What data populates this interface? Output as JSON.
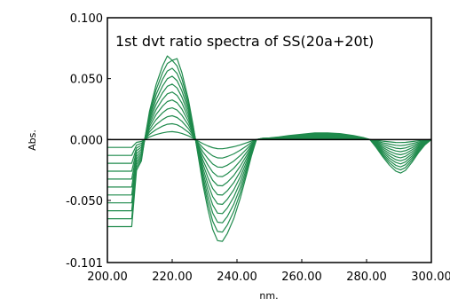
{
  "chart_data": {
    "type": "line",
    "title": "1st dvt ratio spectra of SS(20a+20t)",
    "xlabel": "nm.",
    "ylabel": "Abs.",
    "xlim": [
      200,
      300
    ],
    "ylim": [
      -0.101,
      0.1
    ],
    "x_ticks": [
      "200.00",
      "220.00",
      "240.00",
      "260.00",
      "280.00",
      "300.00"
    ],
    "y_ticks": [
      {
        "value": 0.1,
        "label": "0.100"
      },
      {
        "value": 0.05,
        "label": "0.050"
      },
      {
        "value": 0.0,
        "label": "0.000"
      },
      {
        "value": -0.05,
        "label": "-0.050"
      },
      {
        "value": -0.101,
        "label": "-0.101"
      }
    ],
    "grid": false,
    "legend": "none",
    "series_color": "#1f8a4c",
    "zero_line_color": "#000000",
    "x": [
      200,
      204,
      207.5,
      209,
      210.5,
      211.5,
      213,
      215,
      217,
      218.5,
      220,
      221.5,
      223,
      225,
      226.5,
      228,
      229.5,
      231,
      232.5,
      234,
      235.5,
      237,
      239,
      241,
      243,
      244.5,
      246,
      248,
      250,
      253,
      256,
      260,
      264,
      268,
      272,
      276,
      279,
      281,
      283,
      285,
      287,
      289,
      290.5,
      292,
      294,
      296,
      298,
      300
    ],
    "series": [
      {
        "values": [
          -0.0065,
          -0.0065,
          -0.0065,
          -0.0023,
          -0.0016,
          0.0,
          0.0021,
          0.0041,
          0.0055,
          0.0062,
          0.0065,
          0.006,
          0.005,
          0.003,
          0.001,
          -0.0012,
          -0.0034,
          -0.0052,
          -0.0067,
          -0.0075,
          -0.0076,
          -0.007,
          -0.0059,
          -0.0044,
          -0.0026,
          -0.0012,
          0.0,
          0.0001,
          0.0001,
          0.0002,
          0.0003,
          0.0004,
          0.0005,
          0.0005,
          0.0004,
          0.0003,
          0.0001,
          0.0,
          -0.0006,
          -0.0013,
          -0.0019,
          -0.0024,
          -0.0025,
          -0.0023,
          -0.0017,
          -0.001,
          -0.0004,
          0.0
        ]
      },
      {
        "values": [
          -0.013,
          -0.013,
          -0.013,
          -0.0046,
          -0.0032,
          0.0,
          0.0042,
          0.0082,
          0.011,
          0.0125,
          0.013,
          0.0121,
          0.01,
          0.006,
          0.002,
          -0.0024,
          -0.0068,
          -0.0104,
          -0.0134,
          -0.0151,
          -0.0152,
          -0.014,
          -0.0118,
          -0.0088,
          -0.0052,
          -0.0024,
          0.0,
          0.0002,
          0.0003,
          0.0004,
          0.0006,
          0.0008,
          0.001,
          0.001,
          0.0009,
          0.0006,
          0.0003,
          0.0,
          -0.0012,
          -0.0026,
          -0.0038,
          -0.0047,
          -0.005,
          -0.0046,
          -0.0034,
          -0.002,
          -0.0008,
          0.0
        ]
      },
      {
        "values": [
          -0.0195,
          -0.0195,
          -0.0195,
          -0.0069,
          -0.0048,
          0.0,
          0.0063,
          0.0122,
          0.0164,
          0.0187,
          0.0195,
          0.0181,
          0.015,
          0.0089,
          0.0031,
          -0.0036,
          -0.0102,
          -0.0156,
          -0.0201,
          -0.0226,
          -0.0228,
          -0.0211,
          -0.0177,
          -0.0132,
          -0.0078,
          -0.0036,
          0.0,
          0.0003,
          0.0004,
          0.0006,
          0.0009,
          0.0012,
          0.0015,
          0.0015,
          0.0013,
          0.0009,
          0.0004,
          0.0,
          -0.0018,
          -0.0039,
          -0.0057,
          -0.0071,
          -0.0075,
          -0.0069,
          -0.0051,
          -0.003,
          -0.0012,
          0.0
        ]
      },
      {
        "values": [
          -0.026,
          -0.026,
          -0.026,
          -0.0092,
          -0.0064,
          0.0,
          0.0084,
          0.0163,
          0.0219,
          0.025,
          0.026,
          0.0242,
          0.02,
          0.0119,
          0.0041,
          -0.0048,
          -0.0136,
          -0.0208,
          -0.0268,
          -0.0302,
          -0.0304,
          -0.0281,
          -0.0236,
          -0.0176,
          -0.0104,
          -0.0048,
          0.0,
          0.0004,
          0.0005,
          0.0008,
          0.0012,
          0.0016,
          0.002,
          0.002,
          0.0018,
          0.0012,
          0.0006,
          0.0,
          -0.0024,
          -0.0052,
          -0.0076,
          -0.0094,
          -0.01,
          -0.0092,
          -0.0068,
          -0.004,
          -0.0016,
          0.0
        ]
      },
      {
        "values": [
          -0.0325,
          -0.0325,
          -0.0325,
          -0.0115,
          -0.008,
          0.0,
          0.0105,
          0.0204,
          0.0274,
          0.0312,
          0.0325,
          0.0302,
          0.025,
          0.0149,
          0.0051,
          -0.006,
          -0.017,
          -0.026,
          -0.0335,
          -0.0377,
          -0.038,
          -0.0351,
          -0.0295,
          -0.022,
          -0.013,
          -0.006,
          0.0,
          0.0005,
          0.0006,
          0.001,
          0.0015,
          0.002,
          0.0025,
          0.0025,
          0.0022,
          0.0015,
          0.0007,
          0.0,
          -0.003,
          -0.0065,
          -0.0095,
          -0.0118,
          -0.0125,
          -0.0115,
          -0.0085,
          -0.005,
          -0.002,
          0.0
        ]
      },
      {
        "values": [
          -0.039,
          -0.039,
          -0.039,
          -0.0138,
          -0.0096,
          0.0,
          0.0126,
          0.0245,
          0.0329,
          0.0375,
          0.039,
          0.0362,
          0.03,
          0.0178,
          0.0061,
          -0.0072,
          -0.0204,
          -0.0312,
          -0.0402,
          -0.0453,
          -0.0456,
          -0.0421,
          -0.0354,
          -0.0264,
          -0.0156,
          -0.0072,
          0.0,
          0.0006,
          0.0008,
          0.0012,
          0.0018,
          0.0024,
          0.003,
          0.003,
          0.0027,
          0.0018,
          0.0009,
          0.0,
          -0.0036,
          -0.0078,
          -0.0114,
          -0.0141,
          -0.015,
          -0.0138,
          -0.0102,
          -0.006,
          -0.0024,
          0.0
        ]
      },
      {
        "values": [
          -0.0455,
          -0.0455,
          -0.0455,
          -0.0161,
          -0.0112,
          0.0,
          0.0147,
          0.0286,
          0.0384,
          0.0437,
          0.0455,
          0.0423,
          0.035,
          0.0208,
          0.0071,
          -0.0084,
          -0.0238,
          -0.0364,
          -0.0469,
          -0.0528,
          -0.0532,
          -0.0491,
          -0.0413,
          -0.0308,
          -0.0182,
          -0.0084,
          0.0,
          0.0007,
          0.0009,
          0.0014,
          0.0021,
          0.0028,
          0.0035,
          0.0035,
          0.0031,
          0.0021,
          0.001,
          0.0,
          -0.0042,
          -0.0091,
          -0.0133,
          -0.0165,
          -0.0175,
          -0.0161,
          -0.0119,
          -0.007,
          -0.0028,
          0.0
        ]
      },
      {
        "values": [
          -0.052,
          -0.052,
          -0.052,
          -0.0184,
          -0.0128,
          0.0,
          0.0168,
          0.0326,
          0.0438,
          0.0499,
          0.052,
          0.0483,
          0.04,
          0.0238,
          0.0081,
          -0.0096,
          -0.0272,
          -0.0416,
          -0.0536,
          -0.0604,
          -0.0608,
          -0.0562,
          -0.0472,
          -0.0352,
          -0.0208,
          -0.0096,
          0.0,
          0.0008,
          0.001,
          0.0016,
          0.0024,
          0.0032,
          0.004,
          0.004,
          0.0035,
          0.0024,
          0.0012,
          0.0,
          -0.0048,
          -0.0104,
          -0.0152,
          -0.0188,
          -0.02,
          -0.0184,
          -0.0136,
          -0.008,
          -0.0032,
          0.0
        ]
      },
      {
        "values": [
          -0.0585,
          -0.0585,
          -0.0585,
          -0.0207,
          -0.0144,
          0.0,
          0.0189,
          0.0367,
          0.0493,
          0.0562,
          0.0585,
          0.0543,
          0.045,
          0.0267,
          0.0092,
          -0.0108,
          -0.0306,
          -0.0468,
          -0.0603,
          -0.0679,
          -0.0684,
          -0.0632,
          -0.0531,
          -0.0396,
          -0.0234,
          -0.0108,
          0.0,
          0.0009,
          0.0011,
          0.0018,
          0.0027,
          0.0036,
          0.0045,
          0.0045,
          0.004,
          0.0027,
          0.0013,
          0.0,
          -0.0054,
          -0.0117,
          -0.0171,
          -0.0212,
          -0.0225,
          -0.0207,
          -0.0153,
          -0.009,
          -0.0036,
          0.0
        ]
      },
      {
        "values": [
          -0.065,
          -0.065,
          -0.065,
          -0.023,
          -0.016,
          0.0,
          0.021,
          0.0408,
          0.0548,
          0.0624,
          0.065,
          0.0604,
          0.05,
          0.0297,
          0.0102,
          -0.012,
          -0.034,
          -0.052,
          -0.067,
          -0.0755,
          -0.076,
          -0.0702,
          -0.059,
          -0.044,
          -0.026,
          -0.012,
          0.0,
          0.001,
          0.0012,
          0.002,
          0.003,
          0.004,
          0.005,
          0.005,
          0.0044,
          0.003,
          0.0015,
          0.0,
          -0.006,
          -0.013,
          -0.019,
          -0.0235,
          -0.025,
          -0.023,
          -0.017,
          -0.01,
          -0.004,
          0.0
        ]
      },
      {
        "values": [
          -0.0715,
          -0.0715,
          -0.0715,
          -0.0253,
          -0.0176,
          0.0,
          0.0231,
          0.0449,
          0.0603,
          0.0686,
          0.065,
          0.0664,
          0.055,
          0.0327,
          0.0112,
          -0.0132,
          -0.0374,
          -0.0572,
          -0.0737,
          -0.083,
          -0.0836,
          -0.0772,
          -0.0649,
          -0.0484,
          -0.0286,
          -0.0132,
          0.0,
          0.0011,
          0.0013,
          0.0022,
          0.0033,
          0.0044,
          0.0055,
          0.0055,
          0.0048,
          0.0033,
          0.0016,
          0.0,
          -0.0066,
          -0.0143,
          -0.0209,
          -0.0259,
          -0.0275,
          -0.0253,
          -0.0187,
          -0.011,
          -0.0044,
          0.0
        ]
      }
    ]
  }
}
